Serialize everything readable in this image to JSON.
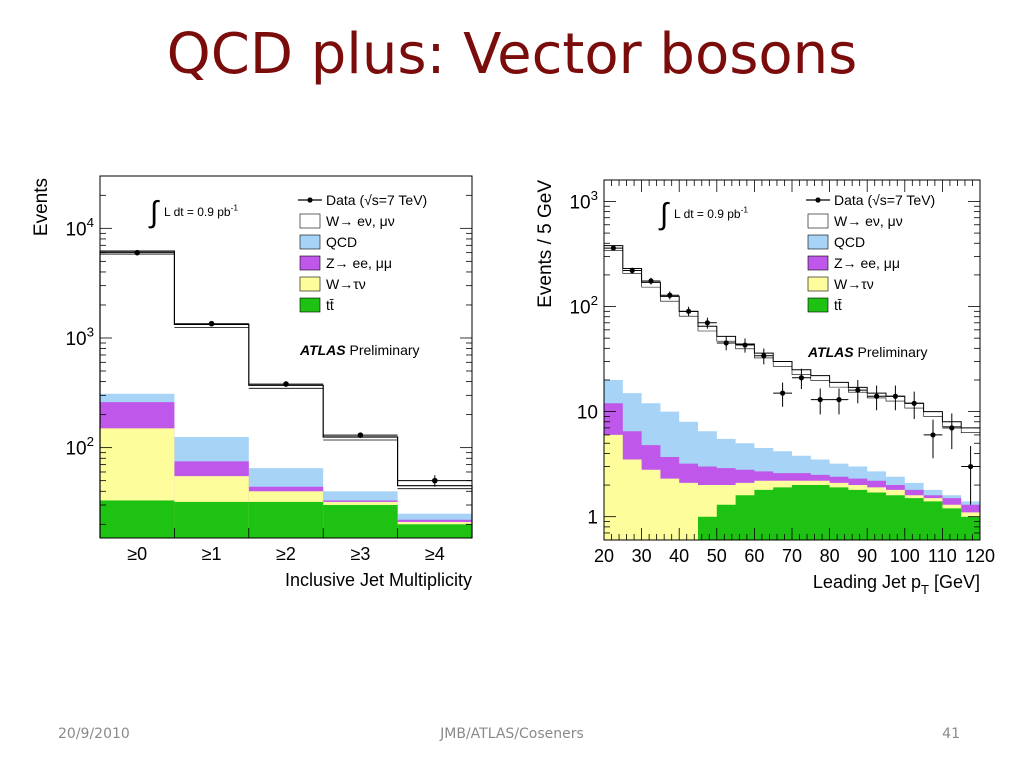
{
  "slide": {
    "title": "QCD plus: Vector bosons",
    "footer_date": "20/9/2010",
    "footer_center": "JMB/ATLAS/Coseners",
    "footer_page": "41"
  },
  "colors": {
    "title": "#7b0c0c",
    "qcd": "#a6d3f6",
    "zll": "#c057eb",
    "wtau": "#fdfd9c",
    "ttbar": "#1ec213",
    "total": "#000000"
  },
  "chart_data": [
    {
      "type": "bar",
      "name_key": "multiplicity",
      "xlabel": "Inclusive Jet Multiplicity",
      "ylabel": "Events",
      "yscale": "log",
      "ylim": [
        15,
        30000
      ],
      "categories": [
        "≥0",
        "≥1",
        "≥2",
        "≥3",
        "≥4"
      ],
      "y_ticks": [
        {
          "value": 10000,
          "base": "10",
          "exp": "4"
        },
        {
          "value": 1000,
          "base": "10",
          "exp": "3"
        },
        {
          "value": 100,
          "base": "10",
          "exp": "2"
        }
      ],
      "stack": [
        {
          "name": "tt̄",
          "color_key": "ttbar",
          "values": [
            33,
            32,
            32,
            30,
            20
          ]
        },
        {
          "name": "W→τν",
          "color_key": "wtau",
          "values": [
            150,
            55,
            40,
            32,
            21
          ]
        },
        {
          "name": "Z→ ee, μμ",
          "color_key": "zll",
          "values": [
            260,
            75,
            44,
            33,
            22
          ]
        },
        {
          "name": "QCD",
          "color_key": "qcd",
          "values": [
            310,
            125,
            65,
            40,
            25
          ]
        }
      ],
      "total_mc": {
        "name": "W→ eν, μν",
        "values": [
          6200,
          1330,
          370,
          125,
          45
        ]
      },
      "data": {
        "name": "Data (√s=7 TeV)",
        "values": [
          6000,
          1350,
          380,
          130,
          50
        ],
        "errors": [
          0,
          0,
          0,
          6,
          6
        ]
      },
      "annotations": {
        "lumi_prefix": "L dt = 0.9 pb",
        "lumi_exp": "-1",
        "atlas": "ATLAS",
        "preliminary": "Preliminary"
      },
      "legend": {
        "position": "top-right",
        "entries": [
          {
            "label": "Data (√s=7 TeV)",
            "kind": "data"
          },
          {
            "label": "W→ eν, μν",
            "kind": "box",
            "color": "#ffffff"
          },
          {
            "label": "QCD",
            "kind": "box",
            "color": "#a6d3f6"
          },
          {
            "label": "Z→ ee, μμ",
            "kind": "box",
            "color": "#c057eb"
          },
          {
            "label": "W→τν",
            "kind": "box",
            "color": "#fdfd9c"
          },
          {
            "label": "tt̄",
            "kind": "box",
            "color": "#1ec213"
          }
        ]
      }
    },
    {
      "type": "bar",
      "name_key": "leadingjet",
      "xlabel_main": "Leading Jet p",
      "xlabel_sub": "T",
      "xlabel_unit": " [GeV]",
      "ylabel": "Events / 5 GeV",
      "yscale": "log",
      "xlim": [
        20,
        120
      ],
      "ylim": [
        0.6,
        1600
      ],
      "x_ticks": [
        20,
        30,
        40,
        50,
        60,
        70,
        80,
        90,
        100,
        110,
        120
      ],
      "y_ticks": [
        {
          "value": 1000,
          "base": "10",
          "exp": "3"
        },
        {
          "value": 100,
          "base": "10",
          "exp": "2"
        },
        {
          "value": 10,
          "base": "10",
          "exp": ""
        },
        {
          "value": 1,
          "base": "1",
          "exp": ""
        }
      ],
      "bin_edges": [
        20,
        25,
        30,
        35,
        40,
        45,
        50,
        55,
        60,
        65,
        70,
        75,
        80,
        85,
        90,
        95,
        100,
        105,
        110,
        115,
        120
      ],
      "stack": [
        {
          "name": "tt̄",
          "color_key": "ttbar",
          "values": [
            0,
            0,
            0,
            0,
            0,
            1,
            1.3,
            1.6,
            1.8,
            1.9,
            2.0,
            2.0,
            1.9,
            1.8,
            1.7,
            1.6,
            1.5,
            1.4,
            1.2,
            1.0
          ]
        },
        {
          "name": "W→τν",
          "color_key": "wtau",
          "values": [
            6,
            3.5,
            2.8,
            2.3,
            2.1,
            2.0,
            2.0,
            2.1,
            2.2,
            2.2,
            2.2,
            2.2,
            2.1,
            2.0,
            1.9,
            1.8,
            1.6,
            1.5,
            1.3,
            1.1
          ]
        },
        {
          "name": "Z→ ee, μμ",
          "color_key": "zll",
          "values": [
            12,
            6.5,
            4.8,
            3.7,
            3.2,
            3.0,
            2.9,
            2.8,
            2.7,
            2.6,
            2.6,
            2.5,
            2.4,
            2.3,
            2.2,
            2.0,
            1.8,
            1.6,
            1.5,
            1.3
          ]
        },
        {
          "name": "QCD",
          "color_key": "qcd",
          "values": [
            20,
            15,
            12,
            10,
            8,
            6.5,
            5.5,
            5,
            4.5,
            4.2,
            3.8,
            3.5,
            3.2,
            3,
            2.7,
            2.4,
            2.1,
            1.8,
            1.6,
            1.4
          ]
        },
        {
          "name": "W→ eν, μν",
          "color_key": "total",
          "values": [
            380,
            230,
            170,
            125,
            90,
            65,
            52,
            44,
            36,
            30,
            25,
            22,
            19,
            17,
            15,
            14,
            12,
            10,
            8,
            7
          ]
        }
      ],
      "data": {
        "x": [
          22.5,
          27.5,
          32.5,
          37.5,
          42.5,
          47.5,
          52.5,
          57.5,
          62.5,
          67.5,
          72.5,
          77.5,
          82.5,
          87.5,
          92.5,
          97.5,
          102.5,
          107.5,
          112.5,
          117.5
        ],
        "values": [
          360,
          220,
          175,
          128,
          90,
          70,
          45,
          43,
          34,
          15,
          21,
          13,
          13,
          16,
          14,
          14,
          12,
          6,
          7,
          3
        ],
        "errors": [
          19,
          15,
          13,
          11,
          9.5,
          8.4,
          6.7,
          6.6,
          5.8,
          3.9,
          4.6,
          3.6,
          3.6,
          4,
          3.7,
          3.7,
          3.5,
          2.4,
          2.6,
          1.7
        ]
      },
      "annotations": {
        "lumi_prefix": "L dt = 0.9 pb",
        "lumi_exp": "-1",
        "atlas": "ATLAS",
        "preliminary": "Preliminary"
      },
      "legend": {
        "position": "top-right",
        "entries": [
          {
            "label": "Data (√s=7 TeV)",
            "kind": "data"
          },
          {
            "label": "W→ eν, μν",
            "kind": "box",
            "color": "#ffffff"
          },
          {
            "label": "QCD",
            "kind": "box",
            "color": "#a6d3f6"
          },
          {
            "label": "Z→ ee, μμ",
            "kind": "box",
            "color": "#c057eb"
          },
          {
            "label": "W→τν",
            "kind": "box",
            "color": "#fdfd9c"
          },
          {
            "label": "tt̄",
            "kind": "box",
            "color": "#1ec213"
          }
        ]
      }
    }
  ]
}
